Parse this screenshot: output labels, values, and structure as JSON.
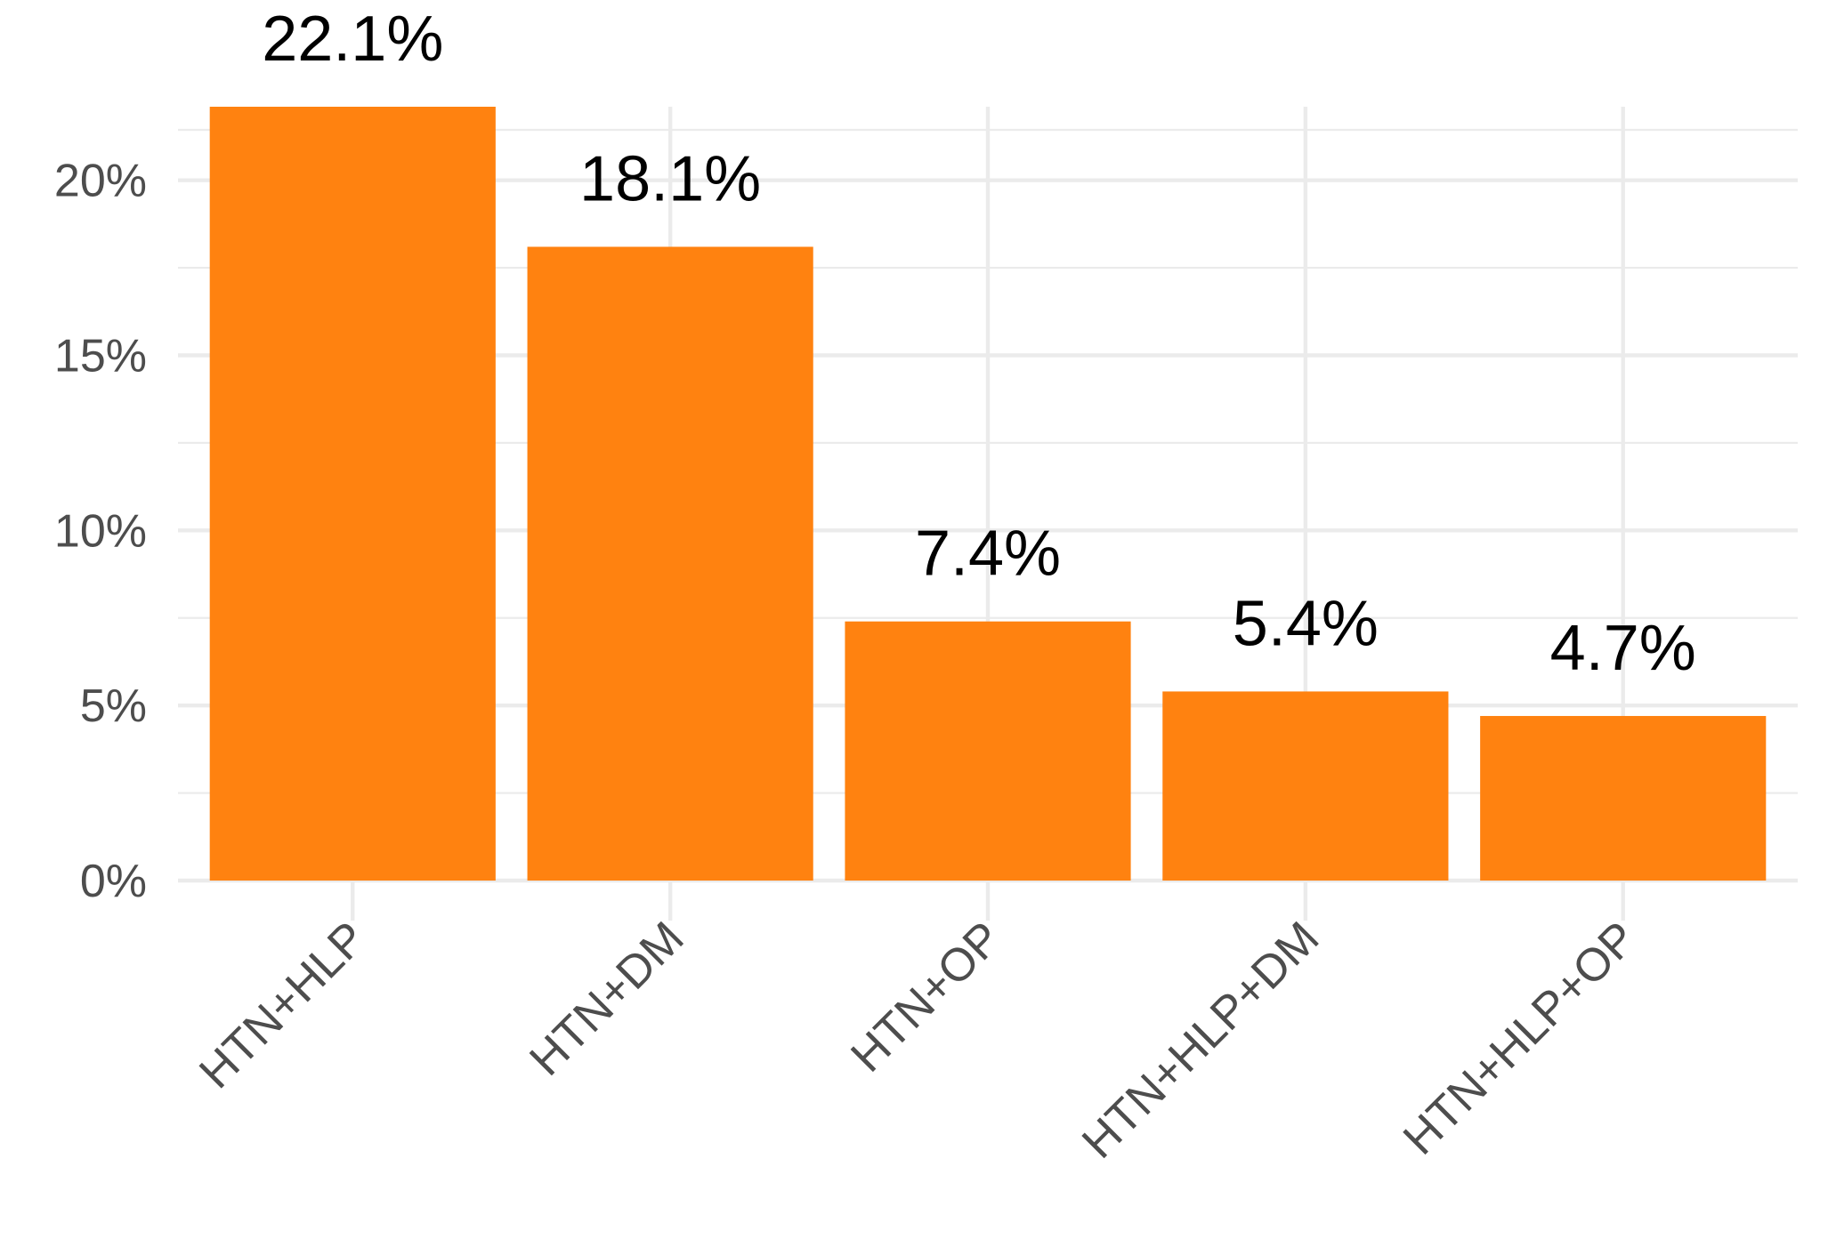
{
  "chart_data": {
    "type": "bar",
    "categories": [
      "HTN+HLP",
      "HTN+DM",
      "HTN+OP",
      "HTN+HLP+DM",
      "HTN+HLP+OP"
    ],
    "values": [
      22.1,
      18.1,
      7.4,
      5.4,
      4.7
    ],
    "data_labels": [
      "22.1%",
      "18.1%",
      "7.4%",
      "5.4%",
      "4.7%"
    ],
    "title": "",
    "xlabel": "",
    "ylabel": "",
    "ylim": [
      0,
      22.1
    ],
    "y_ticks": [
      0,
      5,
      10,
      15,
      20
    ],
    "y_tick_labels": [
      "0%",
      "5%",
      "10%",
      "15%",
      "20%"
    ],
    "y_minor_ticks": [
      2.5,
      7.5,
      12.5,
      17.5
    ],
    "grid": true,
    "legend": "none",
    "bar_color": "#ff8210",
    "grid_color": "#ebebeb",
    "tick_label_color": "#4d4d4d",
    "x_tick_rotation": 45
  }
}
